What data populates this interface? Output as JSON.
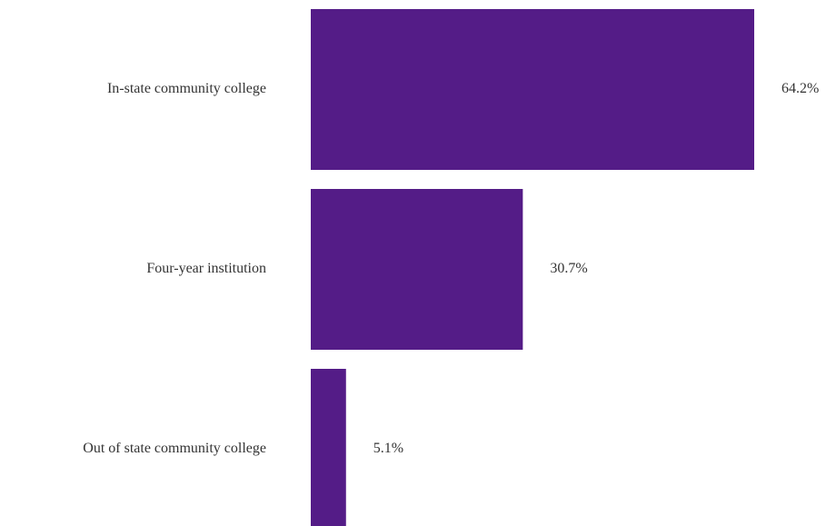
{
  "chart_data": {
    "type": "bar",
    "orientation": "horizontal",
    "categories": [
      "In-state community college",
      "Four-year institution",
      "Out of state community college"
    ],
    "values": [
      64.2,
      30.7,
      5.1
    ],
    "value_labels": [
      "64.2%",
      "30.7%",
      "5.1%"
    ],
    "unit": "%",
    "title": "",
    "xlabel": "",
    "ylabel": "",
    "xlim": [
      0,
      64.2
    ],
    "grid": false,
    "legend": "none",
    "bar_color": "#541c87"
  }
}
